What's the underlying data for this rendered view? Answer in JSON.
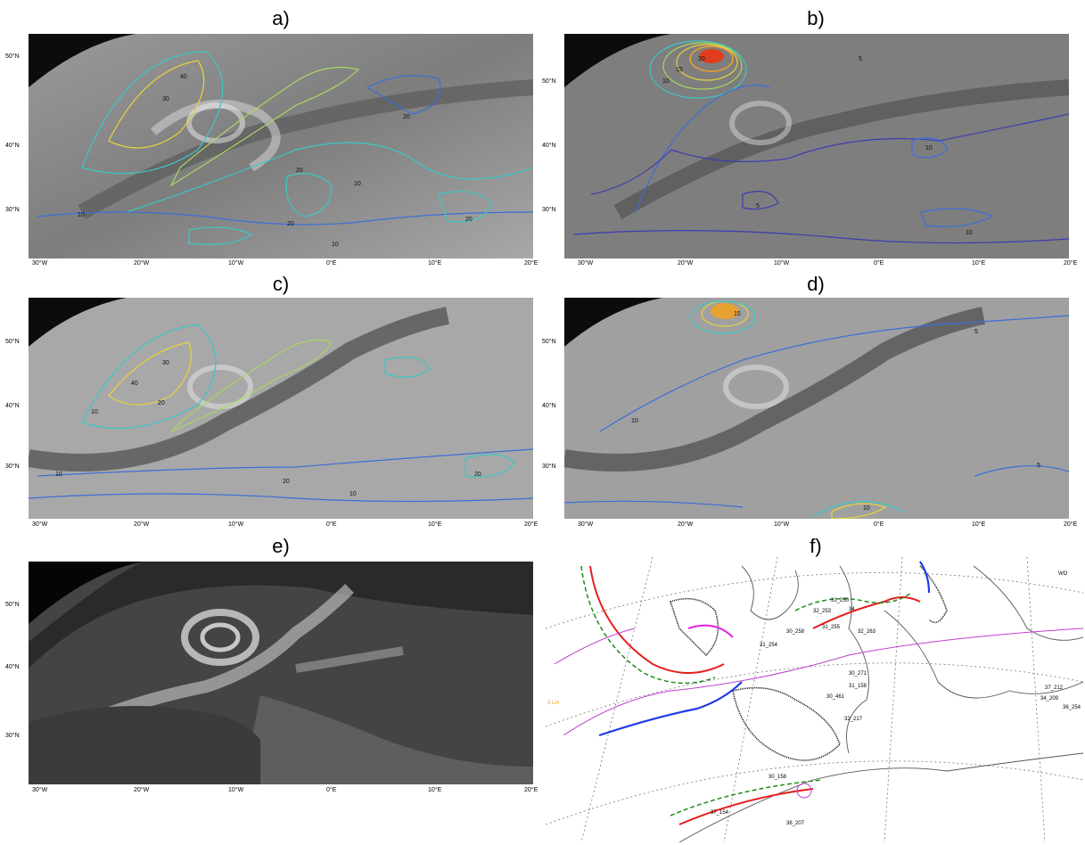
{
  "panels": [
    {
      "id": "a",
      "label": "a)",
      "type": "water-vapour-contours"
    },
    {
      "id": "b",
      "label": "b)",
      "type": "water-vapour-contours"
    },
    {
      "id": "c",
      "label": "c)",
      "type": "water-vapour-contours"
    },
    {
      "id": "d",
      "label": "d)",
      "type": "water-vapour-contours"
    },
    {
      "id": "e",
      "label": "e)",
      "type": "infrared-image"
    },
    {
      "id": "f",
      "label": "f)",
      "type": "synoptic-analysis"
    }
  ],
  "latitude_labels": [
    "50°N",
    "40°N",
    "30°N"
  ],
  "longitude_labels": [
    "30°W",
    "20°W",
    "10°W",
    "0°E",
    "10°E",
    "20°E"
  ],
  "contour_labels": {
    "a": [
      "20",
      "30",
      "40",
      "20",
      "20",
      "20",
      "10",
      "20",
      "10",
      "20"
    ],
    "b": [
      "5",
      "10",
      "15",
      "20",
      "10",
      "5",
      "10",
      "5",
      "10",
      "15",
      "10"
    ],
    "c": [
      "30",
      "40",
      "20",
      "10",
      "10",
      "20",
      "10",
      "20",
      "10"
    ],
    "d": [
      "15",
      "10",
      "5",
      "10",
      "5",
      "5",
      "10"
    ]
  },
  "colors": {
    "contour_low": "#3a6fd8",
    "contour_mid": "#3cc7c7",
    "contour_high": "#e8d23c",
    "contour_max": "#e03c1e",
    "front_cold": "#1e3ce6",
    "front_warm": "#e61e1e",
    "front_occluded": "#e61ee6",
    "trough": "#1e8c1e"
  },
  "synoptic_labels": [
    "31_250",
    "32_253",
    "34",
    "31_254",
    "32_263",
    "30_258",
    "31_255",
    "30_271",
    "31_158",
    "30_461",
    "32_217",
    "30_158",
    "37_212",
    "34_209",
    "36_254",
    "36_207",
    "37_154",
    "3 Lm",
    "WO"
  ]
}
